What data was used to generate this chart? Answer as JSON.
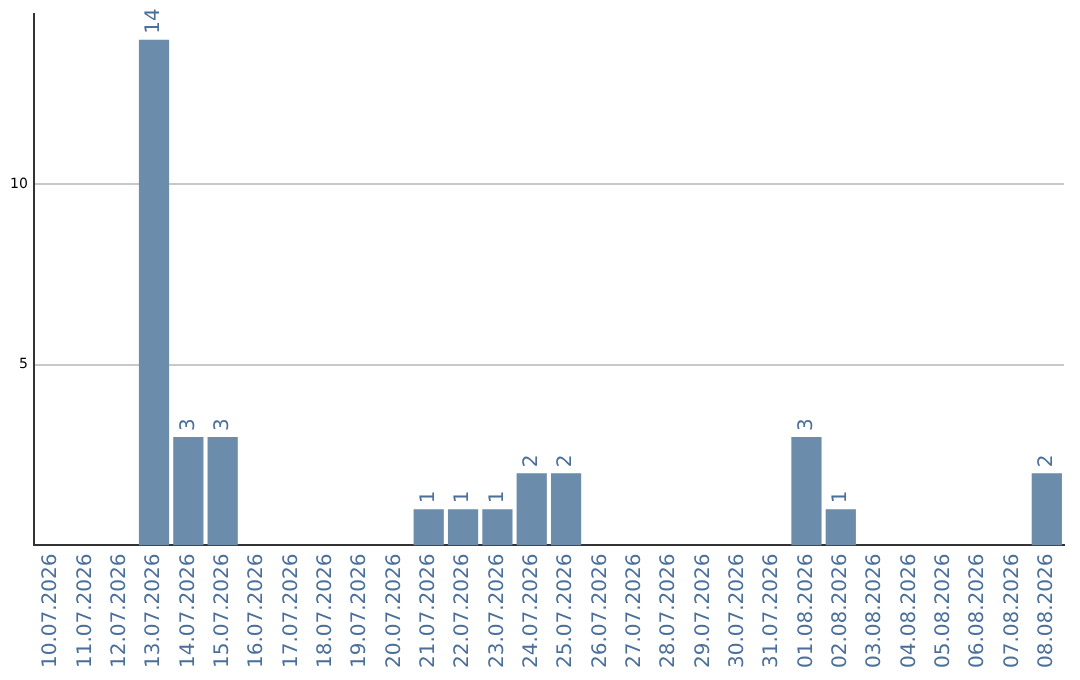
{
  "chart_data": {
    "type": "bar",
    "categories": [
      "10.07.2026",
      "11.07.2026",
      "12.07.2026",
      "13.07.2026",
      "14.07.2026",
      "15.07.2026",
      "16.07.2026",
      "17.07.2026",
      "18.07.2026",
      "19.07.2026",
      "20.07.2026",
      "21.07.2026",
      "22.07.2026",
      "23.07.2026",
      "24.07.2026",
      "25.07.2026",
      "26.07.2026",
      "27.07.2026",
      "28.07.2026",
      "29.07.2026",
      "30.07.2026",
      "31.07.2026",
      "01.08.2026",
      "02.08.2026",
      "03.08.2026",
      "04.08.2026",
      "05.08.2026",
      "06.08.2026",
      "07.08.2026",
      "08.08.2026"
    ],
    "values": [
      0,
      0,
      0,
      14,
      3,
      3,
      0,
      0,
      0,
      0,
      0,
      1,
      1,
      1,
      2,
      2,
      0,
      0,
      0,
      0,
      0,
      0,
      3,
      1,
      0,
      0,
      0,
      0,
      0,
      2
    ],
    "value_labels": [
      null,
      null,
      null,
      "14",
      "3",
      "3",
      null,
      null,
      null,
      null,
      null,
      "1",
      "1",
      "1",
      "2",
      "2",
      null,
      null,
      null,
      null,
      null,
      null,
      "3",
      "1",
      null,
      null,
      null,
      null,
      null,
      "2"
    ],
    "color": "#6c8cab",
    "ylim": [
      0,
      14.7
    ],
    "yticks": [
      5,
      10
    ],
    "grid": "y",
    "legend": false
  }
}
